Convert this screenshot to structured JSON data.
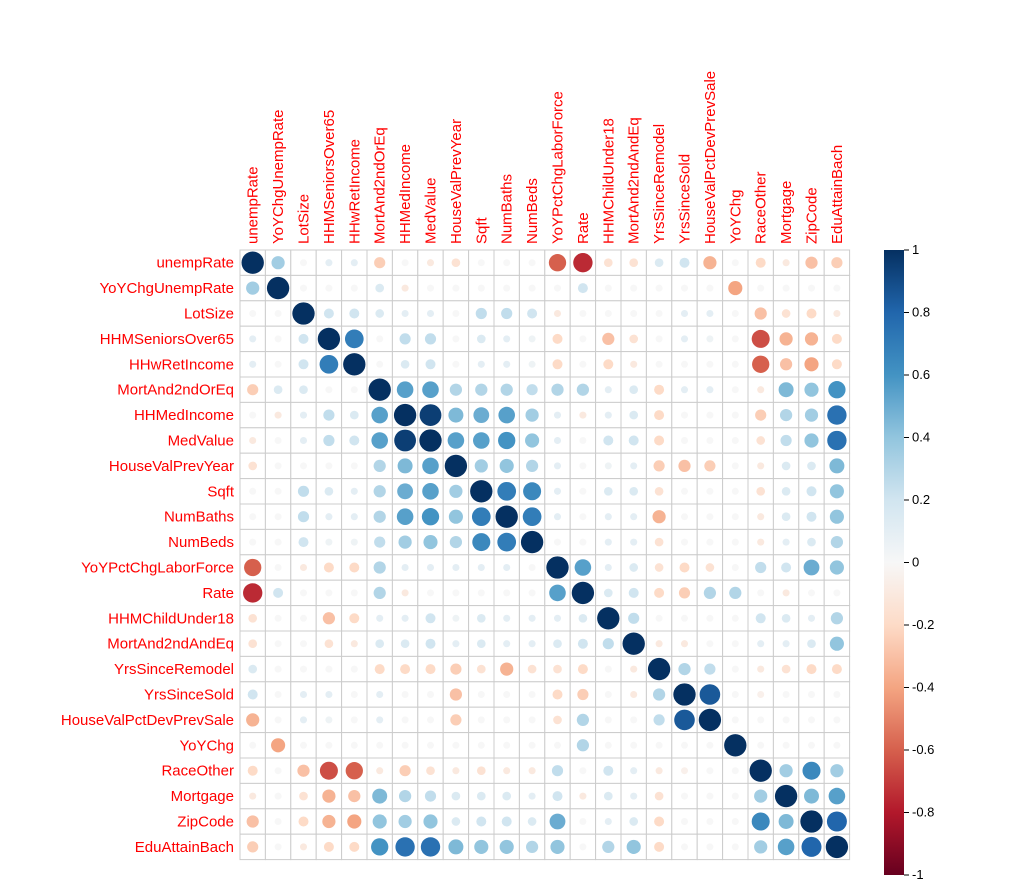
{
  "chart_data": {
    "type": "heatmap",
    "variables": [
      "unempRate",
      "YoYChgUnempRate",
      "LotSize",
      "HHMSeniorsOver65",
      "HHwRetIncome",
      "MortAnd2ndOrEq",
      "HHMedIncome",
      "MedValue",
      "HouseValPrevYear",
      "Sqft",
      "NumBaths",
      "NumBeds",
      "YoYPctChgLaborForce",
      "Rate",
      "HHMChildUnder18",
      "MortAnd2ndAndEq",
      "YrsSinceRemodel",
      "YrsSinceSold",
      "HouseValPctDevPrevSale",
      "YoYChg",
      "RaceOther",
      "Mortgage",
      "ZipCode",
      "EduAttainBach"
    ],
    "matrix": [
      [
        1,
        0.35,
        0,
        0.1,
        0.1,
        -0.25,
        0,
        -0.1,
        -0.15,
        0,
        0,
        0,
        -0.6,
        -0.75,
        -0.15,
        -0.15,
        0.15,
        0.2,
        -0.35,
        0,
        -0.2,
        -0.1,
        -0.3,
        -0.25
      ],
      [
        0.35,
        1,
        0,
        0,
        0,
        0.15,
        -0.1,
        0,
        0,
        0,
        0,
        0,
        0,
        0.2,
        0,
        0,
        0,
        0,
        0,
        -0.4,
        0,
        0,
        0,
        0
      ],
      [
        0,
        0,
        1,
        0.2,
        0.2,
        0.15,
        0.1,
        0.1,
        0,
        0.25,
        0.25,
        0.2,
        -0.1,
        0,
        0,
        0,
        0,
        0.1,
        0.1,
        0,
        -0.3,
        -0.15,
        -0.2,
        -0.1
      ],
      [
        0.1,
        0,
        0.2,
        1,
        0.7,
        0,
        0.25,
        0.25,
        0,
        0.15,
        0.1,
        0.05,
        -0.2,
        0,
        -0.3,
        -0.15,
        0,
        0.1,
        0.05,
        0,
        -0.65,
        -0.35,
        -0.35,
        -0.2
      ],
      [
        0.1,
        0,
        0.2,
        0.7,
        1,
        0,
        0.15,
        0.2,
        0,
        0.1,
        0.1,
        0.05,
        -0.2,
        0,
        -0.2,
        -0.1,
        0,
        0,
        0,
        0,
        -0.6,
        -0.3,
        -0.4,
        -0.2
      ],
      [
        -0.25,
        0.15,
        0.15,
        0,
        0,
        1,
        0.55,
        0.55,
        0.3,
        0.3,
        0.3,
        0.25,
        0.3,
        0.3,
        0.1,
        0.15,
        -0.2,
        0.1,
        0.1,
        0,
        -0.1,
        0.45,
        0.4,
        0.6
      ],
      [
        0,
        -0.1,
        0.1,
        0.25,
        0.15,
        0.55,
        1,
        0.95,
        0.45,
        0.5,
        0.55,
        0.35,
        0.1,
        -0.1,
        0.1,
        0.15,
        -0.2,
        0,
        0,
        0,
        -0.25,
        0.3,
        0.35,
        0.75
      ],
      [
        -0.1,
        0,
        0.1,
        0.25,
        0.2,
        0.55,
        0.95,
        1,
        0.55,
        0.55,
        0.6,
        0.4,
        0.1,
        0,
        0.2,
        0.2,
        -0.2,
        0,
        0,
        0,
        -0.15,
        0.25,
        0.4,
        0.75
      ],
      [
        -0.15,
        0,
        0,
        0,
        0,
        0.3,
        0.45,
        0.55,
        1,
        0.35,
        0.4,
        0.3,
        0.1,
        0,
        0.05,
        0.1,
        -0.25,
        -0.3,
        -0.25,
        0,
        -0.1,
        0.15,
        0.15,
        0.45
      ],
      [
        0,
        0,
        0.25,
        0.15,
        0.1,
        0.3,
        0.5,
        0.55,
        0.35,
        1,
        0.7,
        0.65,
        0.1,
        0,
        0.15,
        0.15,
        -0.15,
        0,
        0,
        0,
        -0.15,
        0.15,
        0.2,
        0.4
      ],
      [
        0,
        0,
        0.25,
        0.1,
        0.1,
        0.3,
        0.55,
        0.6,
        0.4,
        0.7,
        1,
        0.7,
        0.1,
        0,
        0.1,
        0.1,
        -0.35,
        0,
        0,
        0,
        -0.1,
        0.15,
        0.2,
        0.4
      ],
      [
        0,
        0,
        0.2,
        0.05,
        0.05,
        0.25,
        0.35,
        0.4,
        0.3,
        0.65,
        0.7,
        1,
        0,
        0,
        0.1,
        0.1,
        -0.15,
        0,
        0,
        0,
        -0.1,
        0.1,
        0.15,
        0.3
      ],
      [
        -0.6,
        0,
        -0.1,
        -0.2,
        -0.2,
        0.3,
        0.1,
        0.1,
        0.1,
        0.1,
        0.1,
        0,
        1,
        0.55,
        0.1,
        0.15,
        -0.15,
        -0.2,
        -0.15,
        0,
        0.25,
        0.2,
        0.5,
        0.4
      ],
      [
        -0.75,
        0.2,
        0,
        0,
        0,
        0.3,
        -0.1,
        0,
        0,
        0,
        0,
        0,
        0.55,
        1,
        0.15,
        0.2,
        -0.2,
        -0.25,
        0.3,
        0.3,
        0,
        -0.1,
        0,
        0
      ],
      [
        -0.15,
        0,
        0,
        -0.3,
        -0.2,
        0.1,
        0.1,
        0.2,
        0.05,
        0.15,
        0.1,
        0.1,
        0.1,
        0.15,
        1,
        0.25,
        0,
        0,
        0,
        0,
        0.2,
        0.15,
        0.1,
        0.3
      ],
      [
        -0.15,
        0,
        0,
        -0.15,
        -0.1,
        0.15,
        0.15,
        0.2,
        0.1,
        0.15,
        0.1,
        0.1,
        0.15,
        0.2,
        0.25,
        1,
        -0.1,
        -0.1,
        0,
        0,
        0.1,
        0.1,
        0.15,
        0.4
      ],
      [
        0.15,
        0,
        0,
        0,
        0,
        -0.2,
        -0.2,
        -0.2,
        -0.25,
        -0.15,
        -0.35,
        -0.15,
        -0.15,
        -0.2,
        0,
        -0.1,
        1,
        0.3,
        0.25,
        0,
        -0.1,
        -0.15,
        -0.2,
        -0.2
      ],
      [
        0.2,
        0,
        0.1,
        0.1,
        0,
        0.1,
        0,
        0,
        -0.3,
        0,
        0,
        0,
        -0.2,
        -0.25,
        0,
        -0.1,
        0.3,
        1,
        0.85,
        0,
        -0.05,
        0,
        0,
        0
      ],
      [
        -0.35,
        0,
        0.1,
        0.05,
        0,
        0.1,
        0,
        0,
        -0.25,
        0,
        0,
        0,
        -0.15,
        0.3,
        0,
        0,
        0.25,
        0.85,
        1,
        0,
        0,
        0,
        0,
        0
      ],
      [
        0,
        -0.4,
        0,
        0,
        0,
        0,
        0,
        0,
        0,
        0,
        0,
        0,
        0,
        0.3,
        0,
        0,
        0,
        0,
        0,
        1,
        0,
        0,
        0,
        0
      ],
      [
        -0.2,
        0,
        -0.3,
        -0.65,
        -0.6,
        -0.1,
        -0.25,
        -0.15,
        -0.1,
        -0.15,
        -0.1,
        -0.1,
        0.25,
        0,
        0.2,
        0.1,
        -0.1,
        -0.05,
        0,
        0,
        1,
        0.35,
        0.65,
        0.35
      ],
      [
        -0.1,
        0,
        -0.15,
        -0.35,
        -0.3,
        0.45,
        0.3,
        0.25,
        0.15,
        0.15,
        0.15,
        0.1,
        0.2,
        -0.1,
        0.15,
        0.1,
        -0.15,
        0,
        0,
        0,
        0.35,
        1,
        0.45,
        0.55
      ],
      [
        -0.3,
        0,
        -0.2,
        -0.35,
        -0.4,
        0.4,
        0.35,
        0.4,
        0.15,
        0.2,
        0.2,
        0.15,
        0.5,
        0,
        0.1,
        0.15,
        -0.2,
        0,
        0,
        0,
        0.65,
        0.45,
        1,
        0.8
      ],
      [
        -0.25,
        0,
        -0.1,
        -0.2,
        -0.2,
        0.6,
        0.75,
        0.75,
        0.45,
        0.4,
        0.4,
        0.3,
        0.4,
        0,
        0.3,
        0.4,
        -0.2,
        0,
        0,
        0,
        0.35,
        0.55,
        0.8,
        1
      ]
    ],
    "colorbar": {
      "ticks": [
        "1",
        "0.8",
        "0.6",
        "0.4",
        "0.2",
        "0",
        "-0.2",
        "-0.4",
        "-0.6",
        "-0.8",
        "-1"
      ],
      "range": [
        -1,
        1
      ]
    },
    "colors": {
      "negative": "#67001f",
      "neutral": "#f7f7f7",
      "positive": "#053061",
      "label": "#ff0000"
    }
  }
}
